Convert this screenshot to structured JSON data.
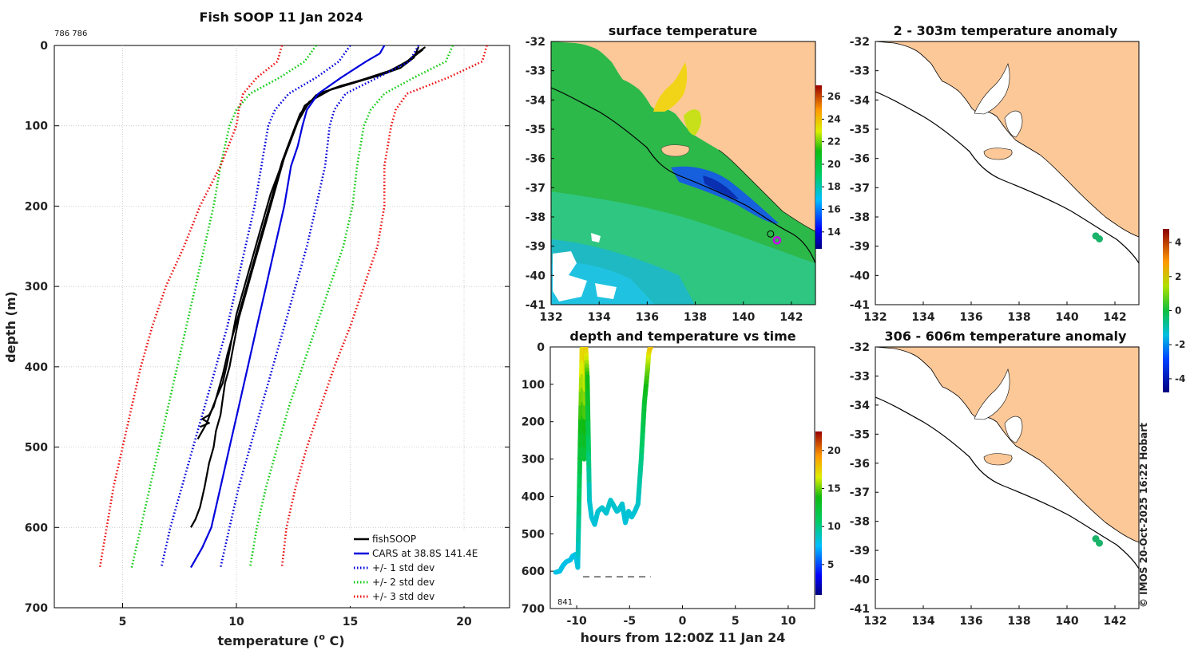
{
  "chart_data": [
    {
      "type": "line",
      "title": "Fish SOOP 11 Jan 2024",
      "id_label": "786 786",
      "xlabel": "temperature (",
      "xlabel_sup": "o",
      "xlabel_end": " C)",
      "ylabel": "depth (m)",
      "xlim": [
        2,
        22
      ],
      "ylim": [
        700,
        0
      ],
      "xticks": [
        5,
        10,
        15,
        20
      ],
      "yticks": [
        0,
        100,
        200,
        300,
        400,
        500,
        600,
        700
      ],
      "grid": true,
      "legend_position": "bottom-right",
      "legend": [
        "fishSOOP",
        "CARS at 38.8S 141.4E",
        "+/- 1 std dev",
        "+/- 2 std dev",
        "+/- 3 std dev"
      ],
      "series": [
        {
          "name": "fishSOOP",
          "color": "#000000",
          "style": "solid",
          "x": [
            18.3,
            17.9,
            17.5,
            16.5,
            15.0,
            13.8,
            13.0,
            12.6,
            12.2,
            11.9,
            11.6,
            11.3,
            11.0,
            10.7,
            10.4,
            10.1,
            9.9,
            9.7,
            9.5,
            9.4,
            9.3,
            9.2,
            9.1,
            9.0,
            8.8,
            8.6,
            8.4,
            8.2,
            8.0
          ],
          "y": [
            2,
            10,
            20,
            35,
            48,
            58,
            75,
            100,
            130,
            160,
            190,
            220,
            250,
            280,
            310,
            340,
            370,
            400,
            420,
            440,
            460,
            470,
            480,
            500,
            520,
            550,
            575,
            590,
            600
          ]
        },
        {
          "name": "fishSOOP",
          "color": "#000000",
          "style": "solid",
          "x": [
            18.0,
            17.8,
            17.2,
            16.2,
            14.6,
            13.5,
            12.8,
            12.4,
            12.0,
            11.7,
            11.4,
            11.1,
            10.8,
            10.5,
            10.2,
            9.9,
            9.6,
            9.4,
            9.2,
            9.0,
            8.8,
            8.5,
            8.8,
            8.4
          ],
          "y": [
            2,
            15,
            28,
            38,
            50,
            62,
            85,
            115,
            145,
            175,
            205,
            235,
            265,
            295,
            325,
            355,
            385,
            410,
            430,
            450,
            460,
            465,
            470,
            475
          ]
        },
        {
          "name": "fishSOOP",
          "color": "#000000",
          "style": "solid",
          "x": [
            18.2,
            17.6,
            16.9,
            15.6,
            14.2,
            13.2,
            12.7,
            12.3,
            11.9,
            11.5,
            11.2,
            10.9,
            10.6,
            10.3,
            10.0,
            9.8,
            9.6,
            9.4,
            9.1,
            8.9,
            8.7,
            8.5,
            8.3
          ],
          "y": [
            5,
            18,
            30,
            42,
            54,
            70,
            95,
            125,
            155,
            185,
            215,
            245,
            275,
            305,
            335,
            365,
            395,
            420,
            440,
            455,
            470,
            480,
            490
          ]
        },
        {
          "name": "CARS at 38.8S 141.4E",
          "color": "#0000dd",
          "style": "solid",
          "x": [
            16.5,
            16.3,
            15.7,
            14.6,
            13.6,
            13.1,
            12.9,
            12.7,
            12.4,
            12.1,
            11.7,
            11.3,
            10.9,
            10.5,
            10.1,
            9.7,
            9.3,
            8.9,
            8.5,
            8.2,
            8.0
          ],
          "y": [
            0,
            10,
            20,
            40,
            60,
            80,
            100,
            125,
            150,
            200,
            250,
            300,
            350,
            400,
            450,
            500,
            550,
            600,
            625,
            640,
            650
          ]
        },
        {
          "name": "+/- 1 std dev",
          "color": "#0000dd",
          "style": "dotted",
          "x": [
            15.0,
            14.5,
            13.5,
            12.3,
            11.7,
            11.4,
            11.1,
            10.8,
            10.4,
            10.0,
            9.6,
            9.1,
            8.6,
            8.1,
            7.6,
            7.1,
            6.7
          ],
          "y": [
            0,
            20,
            40,
            60,
            80,
            100,
            150,
            200,
            250,
            300,
            350,
            400,
            450,
            500,
            550,
            600,
            650
          ]
        },
        {
          "name": "+/- 1 std dev",
          "color": "#0000dd",
          "style": "dotted",
          "x": [
            18.0,
            17.6,
            16.2,
            14.8,
            14.3,
            14.1,
            13.9,
            13.5,
            13.1,
            12.6,
            12.1,
            11.6,
            11.1,
            10.6,
            10.1,
            9.7,
            9.3
          ],
          "y": [
            0,
            20,
            40,
            60,
            80,
            100,
            150,
            200,
            250,
            300,
            350,
            400,
            450,
            500,
            550,
            600,
            650
          ]
        },
        {
          "name": "+/- 2 std dev",
          "color": "#11cc11",
          "style": "dotted",
          "x": [
            13.5,
            13.0,
            11.9,
            10.6,
            10.0,
            9.7,
            9.3,
            9.0,
            8.6,
            8.2,
            7.8,
            7.4,
            7.0,
            6.6,
            6.2,
            5.8,
            5.4
          ],
          "y": [
            0,
            20,
            40,
            60,
            80,
            100,
            150,
            200,
            250,
            300,
            350,
            400,
            450,
            500,
            550,
            600,
            650
          ]
        },
        {
          "name": "+/- 2 std dev",
          "color": "#11cc11",
          "style": "dotted",
          "x": [
            19.5,
            19.2,
            17.8,
            16.5,
            15.9,
            15.6,
            15.3,
            15.1,
            14.7,
            14.1,
            13.5,
            12.9,
            12.3,
            11.8,
            11.3,
            10.9,
            10.6
          ],
          "y": [
            0,
            20,
            40,
            60,
            80,
            100,
            150,
            200,
            250,
            300,
            350,
            400,
            450,
            500,
            550,
            600,
            650
          ]
        },
        {
          "name": "+/- 3 std dev",
          "color": "#ee1111",
          "style": "dotted",
          "x": [
            12.0,
            11.8,
            10.9,
            10.3,
            10.1,
            10.0,
            9.3,
            8.4,
            7.7,
            6.9,
            6.3,
            5.8,
            5.4,
            5.0,
            4.6,
            4.3,
            4.0
          ],
          "y": [
            0,
            20,
            40,
            60,
            80,
            100,
            150,
            200,
            250,
            300,
            350,
            400,
            450,
            500,
            550,
            600,
            650
          ]
        },
        {
          "name": "+/- 3 std dev",
          "color": "#ee1111",
          "style": "dotted",
          "x": [
            21.0,
            20.8,
            19.3,
            17.5,
            17.0,
            16.8,
            16.5,
            16.5,
            16.2,
            15.6,
            15.0,
            14.3,
            13.7,
            13.1,
            12.6,
            12.2,
            12.0
          ],
          "y": [
            0,
            20,
            40,
            60,
            80,
            100,
            150,
            200,
            250,
            300,
            350,
            400,
            450,
            500,
            550,
            600,
            650
          ]
        }
      ]
    },
    {
      "type": "heatmap",
      "title": "surface temperature",
      "xlim": [
        132,
        143
      ],
      "ylim": [
        -41,
        -32
      ],
      "xticks": [
        132,
        134,
        136,
        138,
        140,
        142
      ],
      "yticks": [
        -32,
        -33,
        -34,
        -35,
        -36,
        -37,
        -38,
        -39,
        -40,
        -41
      ],
      "colorbar_ticks": [
        14,
        16,
        18,
        20,
        22,
        24,
        26
      ],
      "colorbar_range": [
        12.5,
        27
      ],
      "vessel_position": {
        "lon": 141.4,
        "lat": -38.8
      }
    },
    {
      "type": "scatter",
      "title": "2 - 303m temperature anomaly",
      "xlim": [
        132,
        143
      ],
      "ylim": [
        -41,
        -32
      ],
      "xticks": [
        132,
        134,
        136,
        138,
        140,
        142
      ],
      "yticks": [
        -32,
        -33,
        -34,
        -35,
        -36,
        -37,
        -38,
        -39,
        -40,
        -41
      ],
      "points": [
        {
          "lon": 141.2,
          "lat": -38.65
        },
        {
          "lon": 141.35,
          "lat": -38.75
        }
      ],
      "colorbar_ticks": [
        -4,
        -2,
        0,
        2,
        4
      ],
      "colorbar_range": [
        -4.8,
        4.8
      ]
    },
    {
      "type": "scatter",
      "title": "depth and temperature vs time",
      "xlabel": "hours from 12:00Z 11 Jan 24",
      "xlim": [
        -12.5,
        12.5
      ],
      "ylim": [
        700,
        0
      ],
      "xticks": [
        -10,
        -5,
        0,
        5,
        10
      ],
      "yticks": [
        0,
        100,
        200,
        300,
        400,
        500,
        600,
        700
      ],
      "count_label": "841",
      "colorbar_ticks": [
        5,
        10,
        15,
        20
      ],
      "colorbar_range": [
        1,
        22.5
      ],
      "track_t": [
        -12.0,
        -11.6,
        -11.3,
        -11.0,
        -10.6,
        -10.4,
        -10.1,
        -9.9,
        -9.7,
        -9.5,
        -9.3,
        -9.15,
        -9.0,
        -8.8,
        -8.6,
        -8.3,
        -8.0,
        -7.6,
        -7.2,
        -6.8,
        -6.5,
        -6.2,
        -6.0,
        -5.7,
        -5.4,
        -5.1,
        -4.8,
        -4.5,
        -4.2,
        -3.9,
        -3.6,
        -3.3,
        -3.2,
        -3.1,
        -3.0
      ],
      "track_depth": [
        603,
        600,
        585,
        575,
        570,
        560,
        555,
        590,
        300,
        5,
        300,
        2,
        80,
        410,
        455,
        475,
        440,
        430,
        445,
        410,
        425,
        440,
        435,
        420,
        470,
        440,
        455,
        440,
        420,
        300,
        150,
        60,
        20,
        5,
        2
      ],
      "track_temp": [
        8,
        8,
        8,
        8,
        8,
        8,
        8,
        8,
        12,
        17.5,
        12,
        18,
        14,
        8.5,
        8.3,
        8.2,
        8.4,
        8.5,
        8.4,
        8.6,
        8.5,
        8.4,
        8.4,
        8.5,
        8.2,
        8.4,
        8.3,
        8.4,
        8.5,
        10,
        12.5,
        15,
        16.5,
        17.5,
        18
      ],
      "dashed_line": {
        "t_start": -9.4,
        "t_end": -3.0,
        "depth": 615
      }
    },
    {
      "type": "scatter",
      "title": "306 - 606m temperature anomaly",
      "xlim": [
        132,
        143
      ],
      "ylim": [
        -41,
        -32
      ],
      "xticks": [
        132,
        134,
        136,
        138,
        140,
        142
      ],
      "yticks": [
        -32,
        -33,
        -34,
        -35,
        -36,
        -37,
        -38,
        -39,
        -40,
        -41
      ],
      "points": [
        {
          "lon": 141.2,
          "lat": -38.6
        },
        {
          "lon": 141.35,
          "lat": -38.75
        }
      ],
      "credit": "© IMOS 20-Oct-2025 16:22 Hobart"
    }
  ],
  "colors": {
    "land": "#fcc898",
    "sea_surface": "#2db84a",
    "grid": "#bbbbbb",
    "anomaly_point": "#1ab36a"
  }
}
